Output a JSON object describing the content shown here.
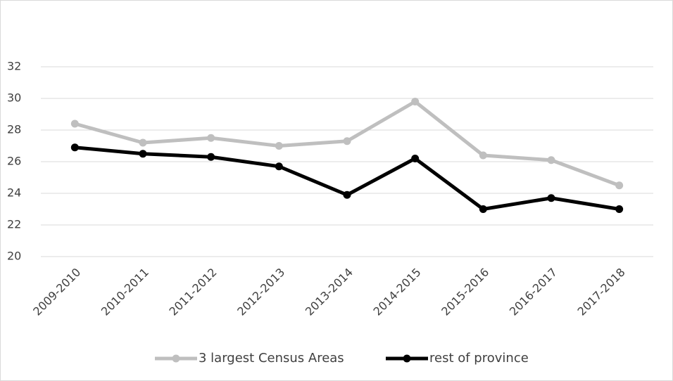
{
  "chart_data": {
    "type": "line",
    "categories": [
      "2009-2010",
      "2010-2011",
      "2011-2012",
      "2012-2013",
      "2013-2014",
      "2014-2015",
      "2015-2016",
      "2016-2017",
      "2017-2018"
    ],
    "series": [
      {
        "name": "3 largest Census Areas",
        "color": "#bfbfbf",
        "values": [
          28.4,
          27.2,
          27.5,
          27.0,
          27.3,
          29.8,
          26.4,
          26.1,
          24.5
        ]
      },
      {
        "name": "rest of province",
        "color": "#000000",
        "values": [
          26.9,
          26.5,
          26.3,
          25.7,
          23.9,
          26.2,
          23.0,
          23.7,
          23.0
        ]
      }
    ],
    "ylim": [
      20,
      32
    ],
    "yticks": [
      20,
      22,
      24,
      26,
      28,
      30,
      32
    ],
    "grid": true
  }
}
